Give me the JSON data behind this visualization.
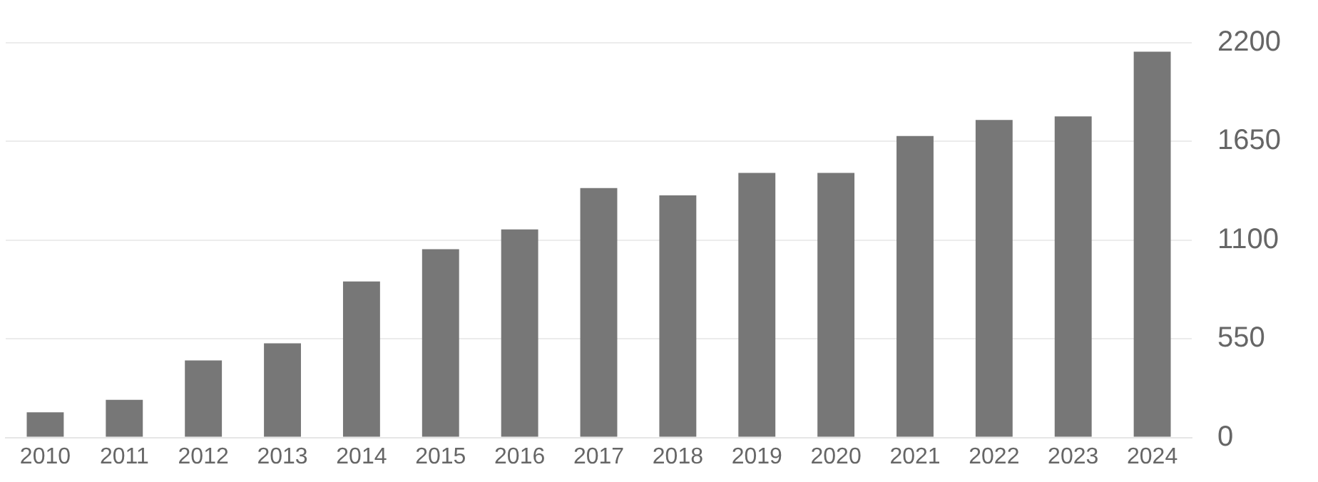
{
  "chart_data": {
    "type": "bar",
    "categories": [
      "2010",
      "2011",
      "2012",
      "2013",
      "2014",
      "2015",
      "2016",
      "2017",
      "2018",
      "2019",
      "2020",
      "2021",
      "2022",
      "2023",
      "2024"
    ],
    "values": [
      140,
      210,
      430,
      525,
      870,
      1050,
      1160,
      1390,
      1350,
      1475,
      1475,
      1680,
      1770,
      1790,
      2150
    ],
    "color": "#777777",
    "ylim": [
      0,
      2200
    ],
    "yticks": [
      0,
      550,
      1100,
      1650,
      2200
    ],
    "grid": "y",
    "legend": false
  }
}
